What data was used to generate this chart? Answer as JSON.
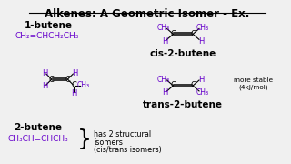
{
  "title": "Alkenes: A Geometric Isomer - Ex.",
  "bg_color": "#f0f0f0",
  "black": "#000000",
  "purple": "#6600cc",
  "label_1butene": "1-butene",
  "formula_1butene": "CH₂=CHCH₂CH₃",
  "label_cis": "cis-2-butene",
  "label_trans": "trans-2-butene",
  "label_2butene": "2-butene",
  "formula_2butene": "CH₃CH=CHCH₃",
  "more_stable": "more stable\n(4kJ/mol)"
}
